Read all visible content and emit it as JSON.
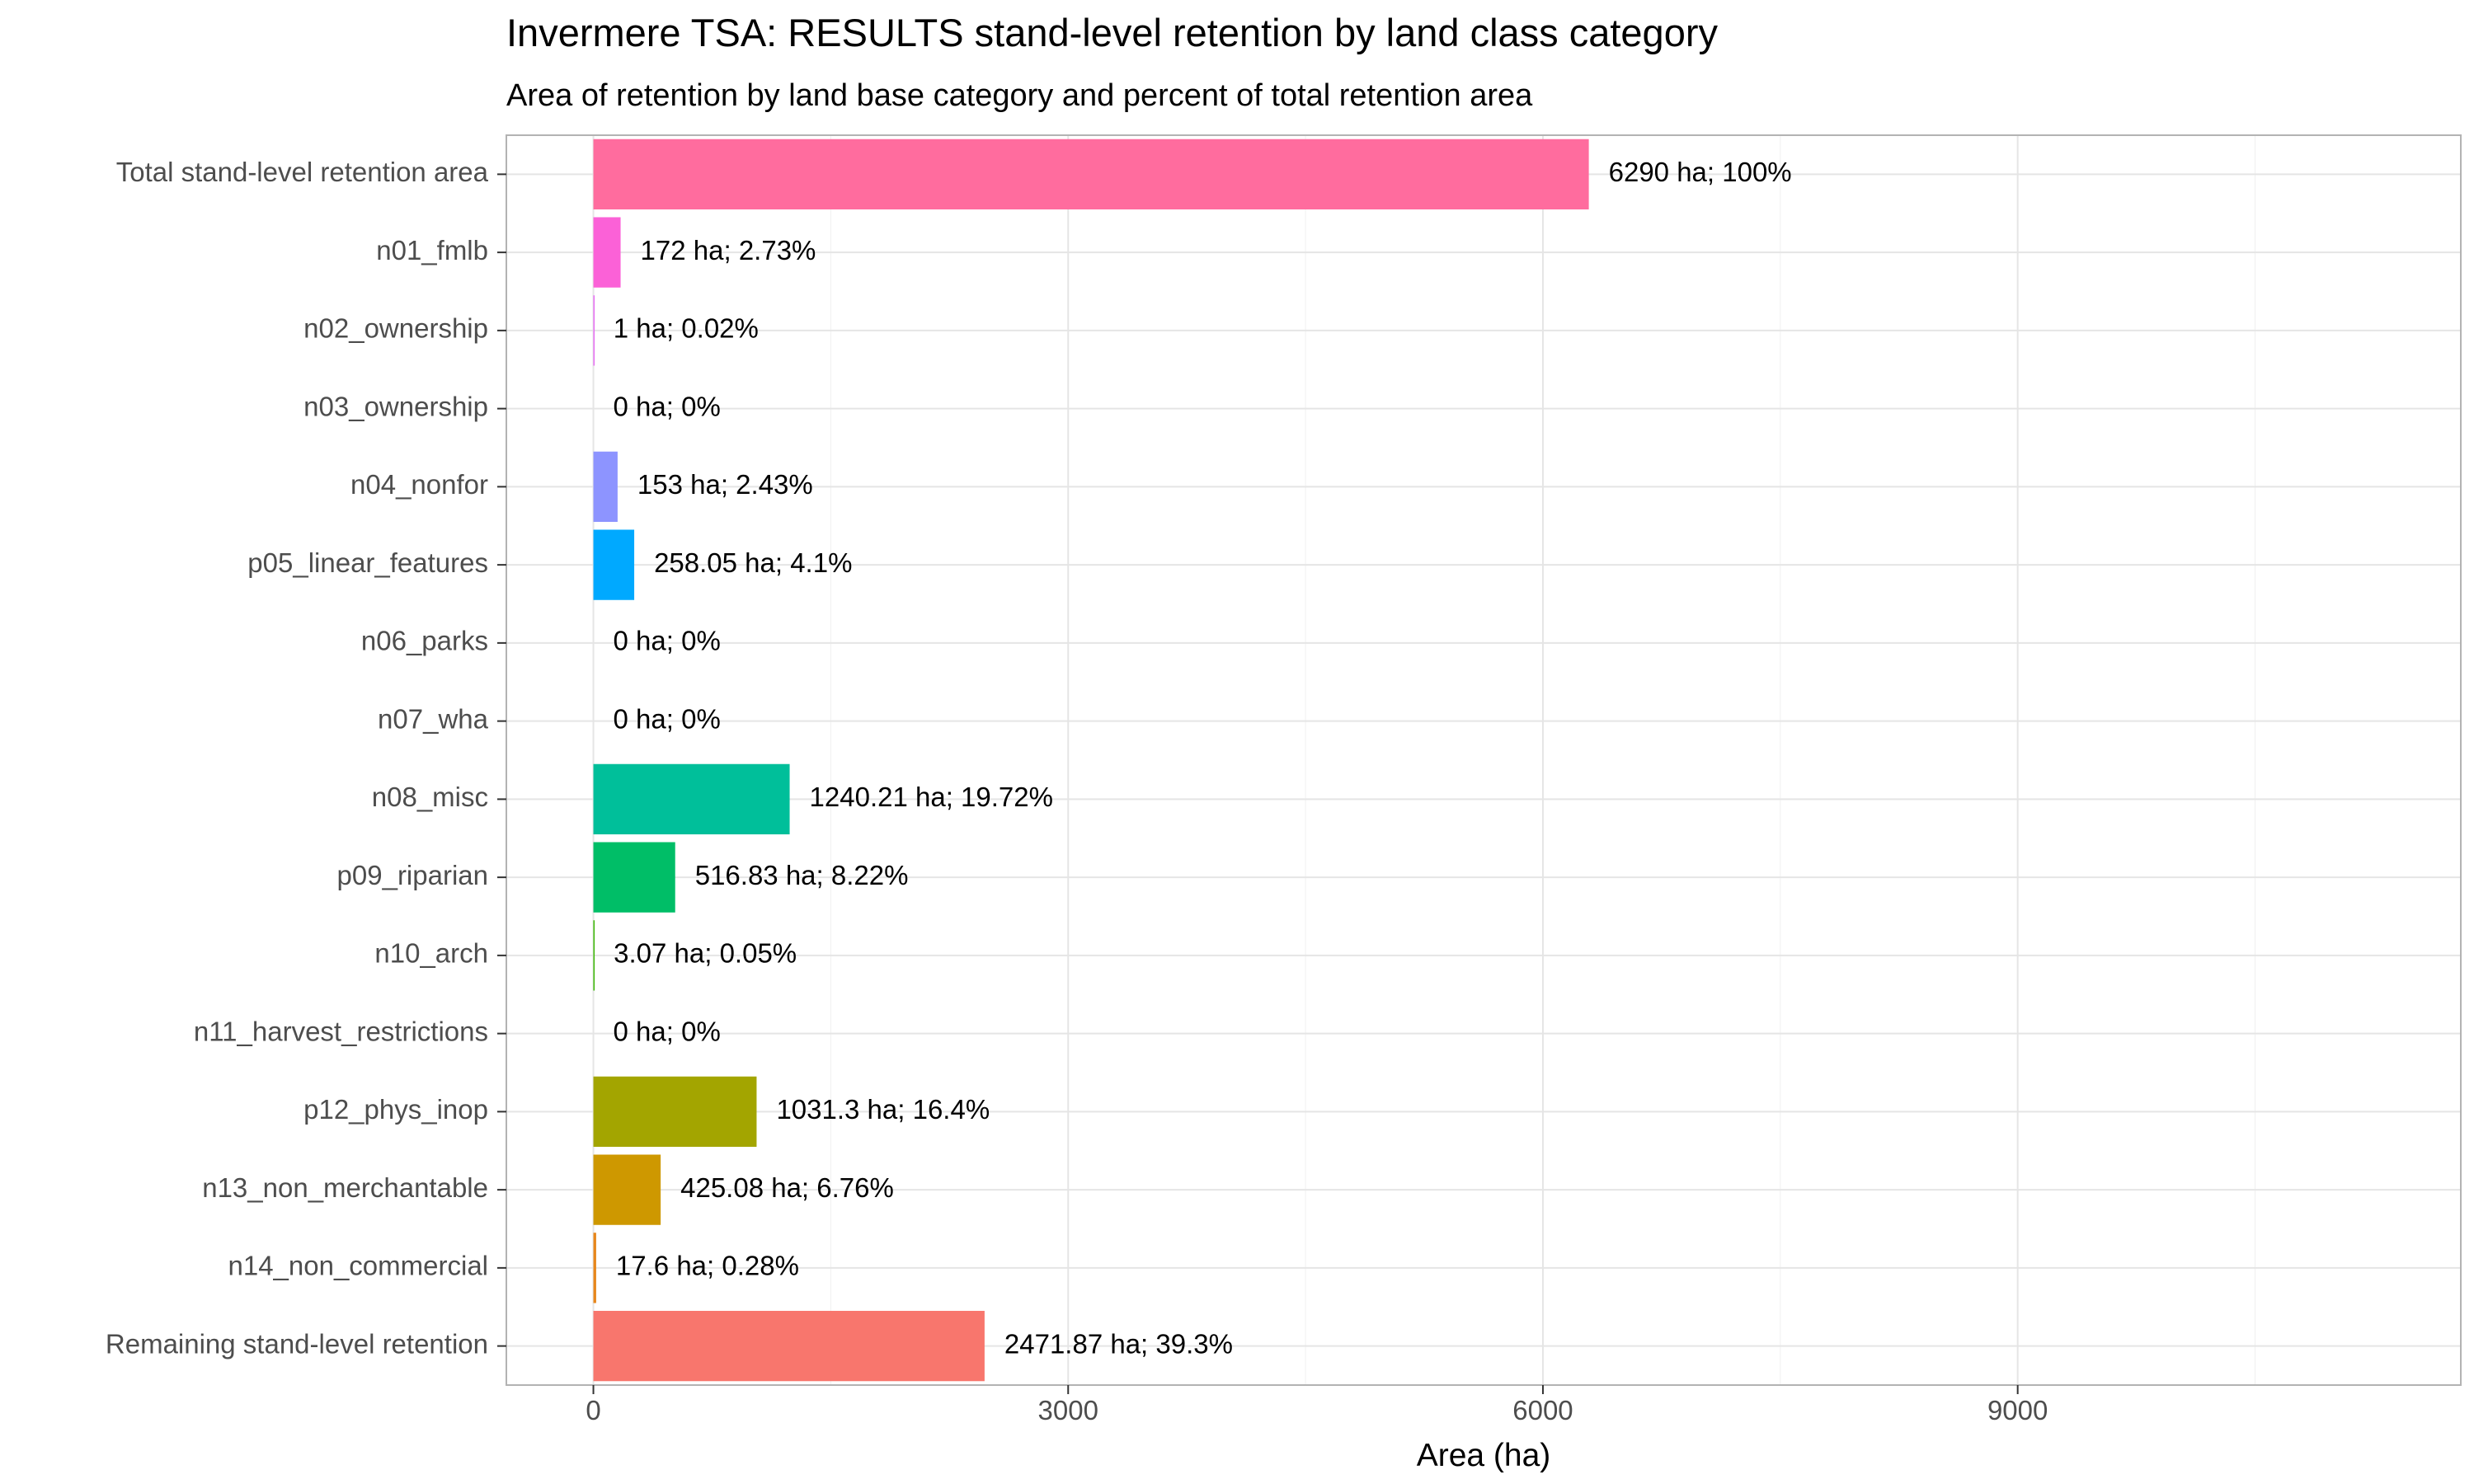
{
  "chart_data": {
    "type": "bar",
    "orientation": "horizontal",
    "title": "Invermere TSA: RESULTS stand-level retention by land class category",
    "subtitle": "Area of retention by land base category and percent of total retention area",
    "xlabel": "Area (ha)",
    "ylabel": "",
    "xlim": [
      -550,
      11800
    ],
    "xticks": [
      0,
      3000,
      6000,
      9000
    ],
    "xtick_labels": [
      "0",
      "3000",
      "6000",
      "9000"
    ],
    "grid": true,
    "legend": "none",
    "categories": [
      "Total stand-level retention area",
      "n01_fmlb",
      "n02_ownership",
      "n03_ownership",
      "n04_nonfor",
      "p05_linear_features",
      "n06_parks",
      "n07_wha",
      "n08_misc",
      "p09_riparian",
      "n10_arch",
      "n11_harvest_restrictions",
      "p12_phys_inop",
      "n13_non_merchantable",
      "n14_non_commercial",
      "Remaining stand-level retention"
    ],
    "values": [
      6290,
      172,
      1,
      0,
      153,
      258.05,
      0,
      0,
      1240.21,
      516.83,
      3.07,
      0,
      1031.3,
      425.08,
      17.6,
      2471.87
    ],
    "labels": [
      "6290 ha; 100%",
      "172 ha; 2.73%",
      "1 ha; 0.02%",
      "0 ha; 0%",
      "153 ha; 2.43%",
      "258.05 ha; 4.1%",
      "0 ha; 0%",
      "0 ha; 0%",
      "1240.21 ha; 19.72%",
      "516.83 ha; 8.22%",
      "3.07 ha; 0.05%",
      "0 ha; 0%",
      "1031.3 ha; 16.4%",
      "425.08 ha; 6.76%",
      "17.6 ha; 0.28%",
      "2471.87 ha; 39.3%"
    ],
    "colors": [
      "#FF6C9E",
      "#FB61D7",
      "#E66CF4",
      "#C77CFF",
      "#8D94FF",
      "#00A9FF",
      "#00B8E7",
      "#00C1A8",
      "#00BF9A",
      "#00BE67",
      "#39B600",
      "#7CAE00",
      "#A3A500",
      "#CE9800",
      "#E7861B",
      "#F8766D"
    ]
  }
}
